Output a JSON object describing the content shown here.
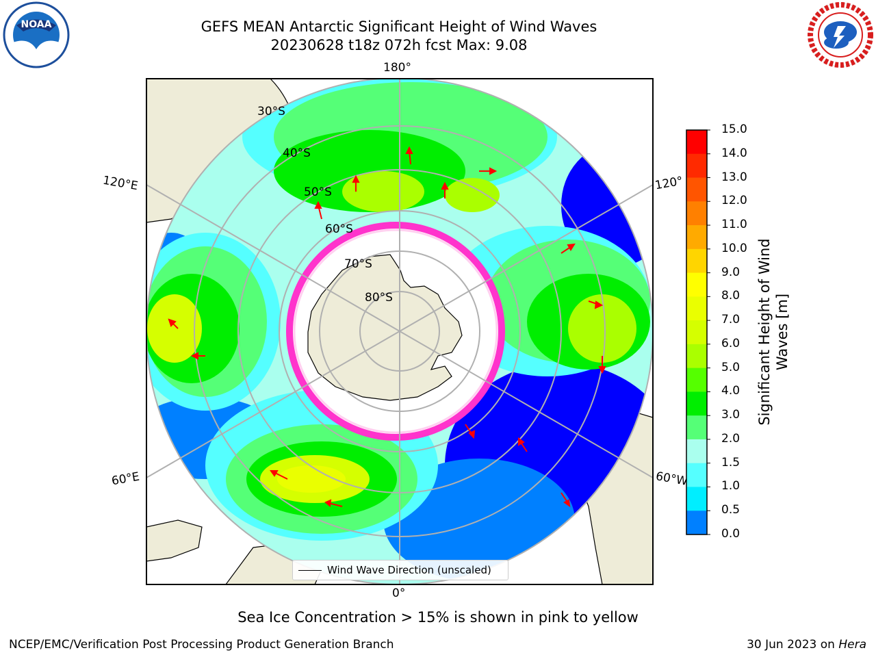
{
  "header": {
    "title_line1": "GEFS MEAN Antarctic Significant Height of Wind Waves",
    "title_line2": "20230628 t18z 072h fcst   Max: 9.08"
  },
  "map": {
    "projection": "south-polar-stereographic",
    "lon_labels": {
      "top": "180°",
      "bottom": "0°",
      "left_upper": "120°E",
      "left_lower": "60°E",
      "right_upper": "120°",
      "right_lower": "60°W"
    },
    "lat_labels": [
      "30°S",
      "40°S",
      "50°S",
      "60°S",
      "70°S",
      "80°S"
    ],
    "legend_label": "Wind Wave Direction (unscaled)",
    "colors": {
      "land": "#eeecd8",
      "ice_edge": "#ff33cc",
      "arrow": "#ff0000",
      "grid": "#b0b0b0"
    }
  },
  "colorbar": {
    "label": "Significant Height of Wind Waves [m]",
    "label_line1": "Significant Height of Wind",
    "label_line2": "Waves [m]",
    "ticks": [
      "15.0",
      "14.0",
      "13.0",
      "12.0",
      "11.0",
      "10.0",
      "9.0",
      "8.0",
      "7.0",
      "6.0",
      "5.0",
      "4.0",
      "3.0",
      "2.0",
      "1.5",
      "1.0",
      "0.5",
      "0.0"
    ],
    "colors": [
      "#ff0000",
      "#ff2a00",
      "#ff5500",
      "#ff8000",
      "#ffaa00",
      "#ffd500",
      "#ffff00",
      "#eaff00",
      "#d5ff00",
      "#aaff00",
      "#55ff00",
      "#00ee00",
      "#55ff77",
      "#aaffee",
      "#55ffff",
      "#00eeff",
      "#0080ff",
      "#0000ff"
    ]
  },
  "caption": "Sea Ice Concentration > 15% is shown in pink to yellow",
  "footer": {
    "left": "NCEP/EMC/Verification Post Processing Product Generation Branch",
    "right_prefix": "30 Jun 2023 on ",
    "right_host": "Hera"
  },
  "logos": {
    "left": "NOAA",
    "right": "NATIONAL WEATHER SERVICE"
  }
}
